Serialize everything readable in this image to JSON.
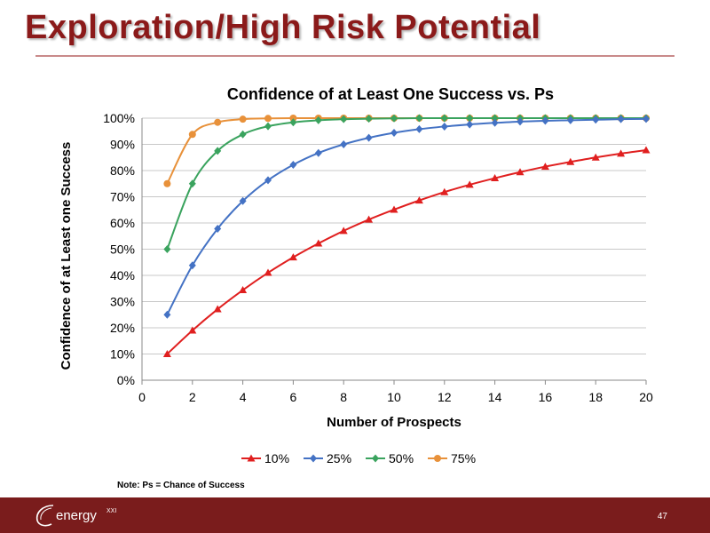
{
  "slide": {
    "title": "Exploration/High Risk Potential",
    "note": "Note: Ps = Chance of Success",
    "page_number": "47",
    "logo_text": "energy",
    "logo_superscript": "XXI"
  },
  "chart_data": {
    "type": "line",
    "title": "Confidence of at Least One Success vs. Ps",
    "xlabel": "Number of Prospects",
    "ylabel": "Confidence of at Least one Success",
    "xlim": [
      0,
      20
    ],
    "ylim": [
      0,
      100
    ],
    "xticks": [
      "0",
      "2",
      "4",
      "6",
      "8",
      "10",
      "12",
      "14",
      "16",
      "18",
      "20"
    ],
    "yticks": [
      "0%",
      "10%",
      "20%",
      "30%",
      "40%",
      "50%",
      "60%",
      "70%",
      "80%",
      "90%",
      "100%"
    ],
    "grid": "horizontal",
    "legend_position": "bottom",
    "x": [
      1,
      2,
      3,
      4,
      5,
      6,
      7,
      8,
      9,
      10,
      11,
      12,
      13,
      14,
      15,
      16,
      17,
      18,
      19,
      20
    ],
    "series": [
      {
        "name": "10%",
        "color": "#e01f1f",
        "marker": "triangle",
        "values": [
          10,
          19,
          27.1,
          34.4,
          41,
          46.9,
          52.2,
          57,
          61.3,
          65.1,
          68.6,
          71.8,
          74.6,
          77.1,
          79.4,
          81.5,
          83.3,
          85,
          86.5,
          87.8
        ]
      },
      {
        "name": "25%",
        "color": "#4472c4",
        "marker": "diamond",
        "values": [
          25,
          43.8,
          57.8,
          68.4,
          76.3,
          82.2,
          86.7,
          90,
          92.5,
          94.4,
          95.8,
          96.8,
          97.6,
          98.2,
          98.7,
          99,
          99.2,
          99.4,
          99.6,
          99.7
        ]
      },
      {
        "name": "50%",
        "color": "#3aa35e",
        "marker": "diamond",
        "values": [
          50,
          75,
          87.5,
          93.8,
          96.9,
          98.4,
          99.2,
          99.6,
          99.8,
          99.9,
          100,
          100,
          100,
          100,
          100,
          100,
          100,
          100,
          100,
          100
        ]
      },
      {
        "name": "75%",
        "color": "#e8913a",
        "marker": "circle",
        "values": [
          75,
          93.8,
          98.4,
          99.6,
          99.9,
          100,
          100,
          100,
          100,
          100,
          100,
          100,
          100,
          100,
          100,
          100,
          100,
          100,
          100,
          100
        ]
      }
    ]
  }
}
